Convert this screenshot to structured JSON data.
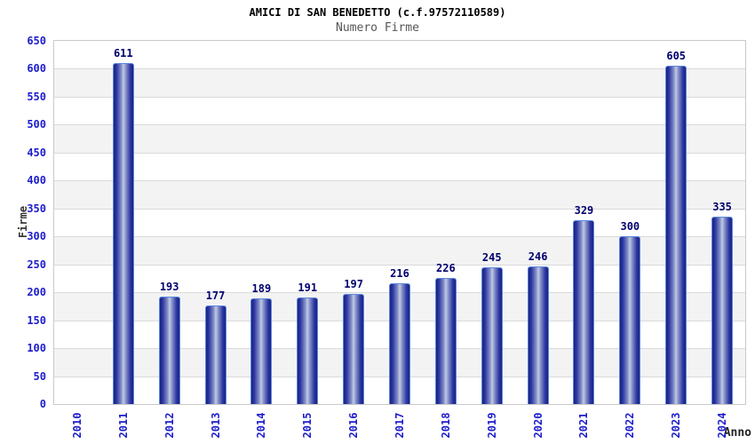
{
  "header": {
    "title": "AMICI DI SAN BENEDETTO (c.f.97572110589)",
    "subtitle": "Numero Firme"
  },
  "chart_data": {
    "type": "bar",
    "title": "AMICI DI SAN BENEDETTO (c.f.97572110589)",
    "subtitle": "Numero Firme",
    "xlabel": "Anno",
    "ylabel": "Firme",
    "categories": [
      "2010",
      "2011",
      "2012",
      "2013",
      "2014",
      "2015",
      "2016",
      "2017",
      "2018",
      "2019",
      "2020",
      "2021",
      "2022",
      "2023",
      "2024"
    ],
    "values": [
      0,
      611,
      193,
      177,
      189,
      191,
      197,
      216,
      226,
      245,
      246,
      329,
      300,
      605,
      335
    ],
    "ylim": [
      0,
      650
    ],
    "yticks": [
      0,
      50,
      100,
      150,
      200,
      250,
      300,
      350,
      400,
      450,
      500,
      550,
      600,
      650
    ],
    "grid": "horizontal-gridlines-with-alternating-bands",
    "legend": "none",
    "colors": {
      "band_alt": "#f3f3f3",
      "band_main": "#ffffff",
      "gridline": "#dadada",
      "plot_border": "#c9c9c9",
      "tick_label": "#1c1ccc",
      "value_label": "#00006e",
      "bar_edge_dark": "#1b2280",
      "bar_center_light": "#c2cbe4",
      "bar_border": "#5b87dd",
      "title": "#000000",
      "subtitle": "#555555",
      "axis_title": "#333333"
    }
  }
}
